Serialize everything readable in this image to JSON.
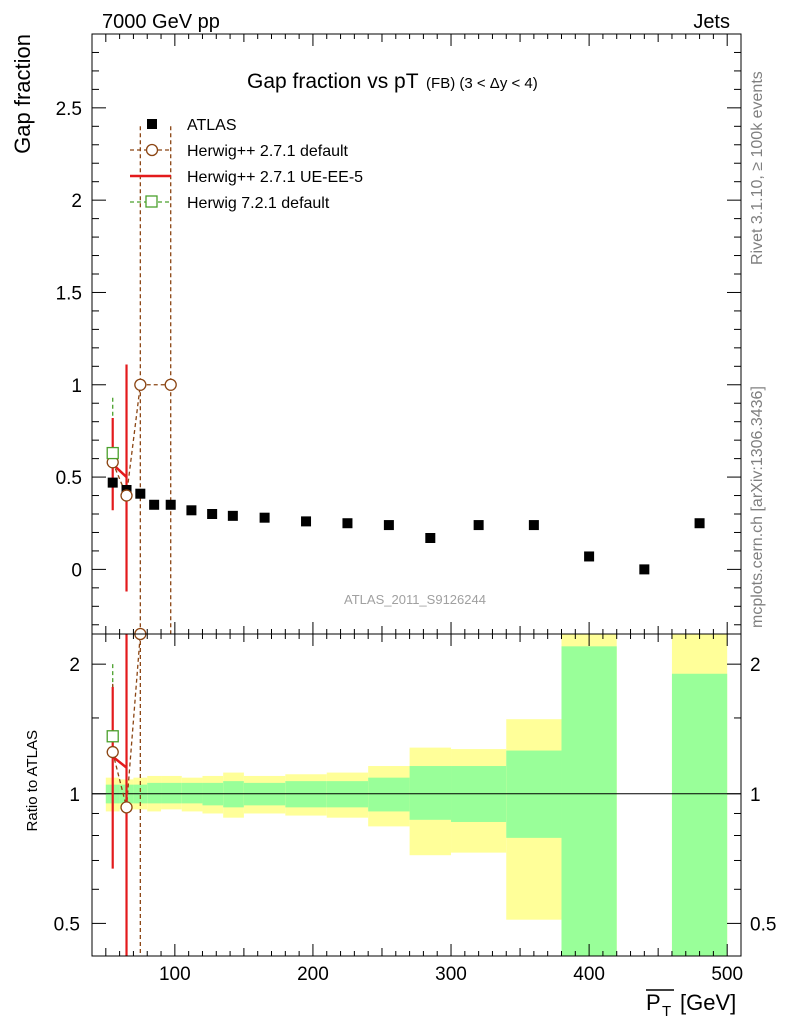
{
  "header": {
    "left": "7000 GeV pp",
    "right": "Jets"
  },
  "side_labels": {
    "rivet": "Rivet 3.1.10, ≥ 100k events",
    "mcplots": "mcplots.cern.ch [arXiv:1306.3436]"
  },
  "chart_data": [
    {
      "type": "scatter",
      "title": "Gap fraction vs pT",
      "title_sub": "(FB) (3 < Δy < 4)",
      "ylabel": "Gap fraction",
      "xlabel": "P",
      "xlabel_sub": "T",
      "xlabel_unit": "[GeV]",
      "watermark": "ATLAS_2011_S9126244",
      "xlim": [
        40,
        510
      ],
      "ylim": [
        -0.35,
        2.9
      ],
      "x_ticks": [
        "100",
        "200",
        "300",
        "400",
        "500"
      ],
      "x_tick_values": [
        100,
        200,
        300,
        400,
        500
      ],
      "y_ticks": [
        "0",
        "0.5",
        "1",
        "1.5",
        "2",
        "2.5"
      ],
      "y_tick_values": [
        0,
        0.5,
        1,
        1.5,
        2,
        2.5
      ],
      "grid": false,
      "legend_position": "top-left",
      "series": [
        {
          "name": "ATLAS",
          "marker": "filled-square",
          "color": "#000000",
          "x": [
            55,
            65,
            75,
            85,
            97,
            112,
            127,
            142,
            165,
            195,
            225,
            255,
            285,
            320,
            360,
            400,
            440,
            480
          ],
          "y": [
            0.47,
            0.43,
            0.41,
            0.35,
            0.35,
            0.32,
            0.3,
            0.29,
            0.28,
            0.26,
            0.25,
            0.24,
            0.17,
            0.24,
            0.24,
            0.07,
            0.0,
            0.25
          ]
        },
        {
          "name": "Herwig++ 2.7.1 default",
          "marker": "open-circle",
          "line": "dashed",
          "color": "#8b4513",
          "x": [
            55,
            65,
            75,
            97
          ],
          "y": [
            0.58,
            0.4,
            1.0,
            1.0
          ],
          "yerr_low": [
            0.24,
            0.4,
            1.5,
            1.5
          ],
          "yerr_high": [
            0.24,
            0.4,
            1.4,
            1.4
          ]
        },
        {
          "name": "Herwig++ 2.7.1 UE-EE-5",
          "marker": "none",
          "line": "solid",
          "color": "#e31a1c",
          "x": [
            55,
            65
          ],
          "y": [
            0.57,
            0.5
          ],
          "yerr_low": [
            0.25,
            0.62
          ],
          "yerr_high": [
            0.25,
            0.61
          ]
        },
        {
          "name": "Herwig 7.2.1 default",
          "marker": "open-square",
          "line": "dashed",
          "color": "#4aa02c",
          "x": [
            55
          ],
          "y": [
            0.63
          ],
          "yerr_low": [
            0.3
          ],
          "yerr_high": [
            0.3
          ]
        }
      ]
    },
    {
      "type": "area",
      "ylabel": "Ratio to ATLAS",
      "ylim": [
        0.42,
        2.35
      ],
      "y_scale": "log",
      "y_ticks": [
        "0.5",
        "1",
        "2"
      ],
      "y_tick_values": [
        0.5,
        1,
        2
      ],
      "reference_line": 1,
      "bands": {
        "bin_edges": [
          50,
          60,
          70,
          80,
          90,
          105,
          120,
          135,
          150,
          180,
          210,
          240,
          270,
          300,
          340,
          380,
          420,
          460,
          500
        ],
        "yellow_low": [
          0.91,
          0.92,
          0.92,
          0.91,
          0.92,
          0.91,
          0.9,
          0.88,
          0.9,
          0.89,
          0.88,
          0.84,
          0.72,
          0.73,
          0.51,
          0.3,
          null,
          0.3
        ],
        "yellow_high": [
          1.09,
          1.08,
          1.09,
          1.1,
          1.1,
          1.09,
          1.1,
          1.12,
          1.1,
          1.11,
          1.12,
          1.16,
          1.28,
          1.27,
          1.49,
          2.4,
          null,
          2.4
        ],
        "green_low": [
          0.95,
          0.95,
          0.95,
          0.95,
          0.95,
          0.95,
          0.94,
          0.93,
          0.94,
          0.93,
          0.93,
          0.91,
          0.87,
          0.86,
          0.79,
          0.3,
          null,
          0.3
        ],
        "green_high": [
          1.05,
          1.05,
          1.05,
          1.06,
          1.06,
          1.06,
          1.06,
          1.07,
          1.06,
          1.07,
          1.07,
          1.09,
          1.16,
          1.16,
          1.26,
          2.2,
          null,
          1.9
        ]
      },
      "series": [
        {
          "name": "Herwig++ 2.7.1 default",
          "x": [
            55,
            65,
            75
          ],
          "y": [
            1.25,
            0.93,
            2.35
          ]
        },
        {
          "name": "Herwig++ 2.7.1 UE-EE-5",
          "x": [
            55,
            65
          ],
          "y": [
            1.22,
            1.15
          ],
          "yerr_low": [
            0.55,
            1.2
          ],
          "yerr_high": [
            0.55,
            1.6
          ]
        },
        {
          "name": "Herwig 7.2.1 default",
          "x": [
            55
          ],
          "y": [
            1.36
          ],
          "yerr_low": [
            0.6
          ],
          "yerr_high": [
            0.64
          ]
        }
      ]
    }
  ],
  "colors": {
    "yellow_band": "#ffff99",
    "green_band": "#99ff99",
    "atlas": "#000000",
    "herwig_default": "#8b4513",
    "herwig_ueee5": "#e31a1c",
    "herwig7": "#4aa02c"
  }
}
